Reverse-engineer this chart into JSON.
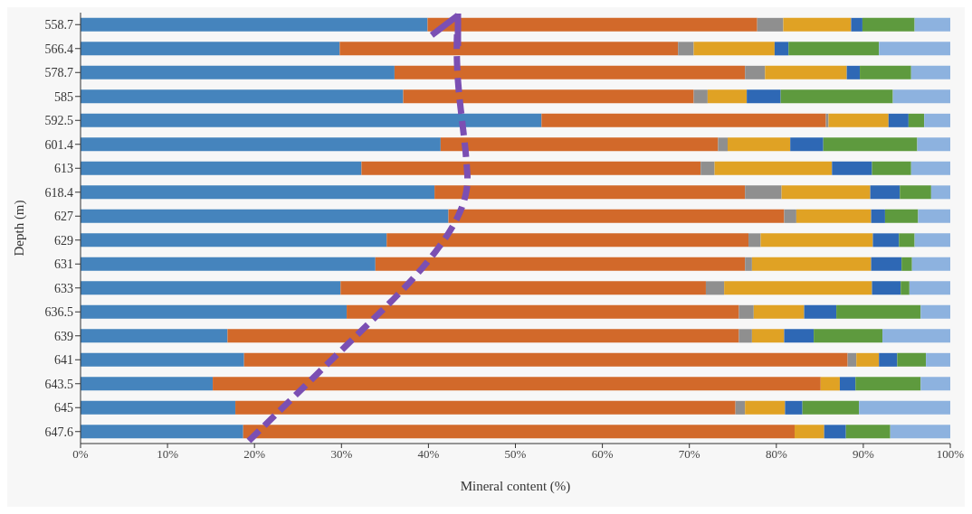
{
  "chart_data": {
    "type": "bar",
    "orientation": "horizontal",
    "stacked": true,
    "xlabel": "Mineral content (%)",
    "ylabel": "Depth (m)",
    "categories": [
      "558.7",
      "566.4",
      "578.7",
      "585",
      "592.5",
      "601.4",
      "613",
      "618.4",
      "627",
      "629",
      "631",
      "633",
      "636.5",
      "639",
      "641",
      "643.5",
      "645",
      "647.6"
    ],
    "xlim": [
      0,
      100
    ],
    "xticks": [
      {
        "value": 0,
        "label": "0%"
      },
      {
        "value": 10,
        "label": "10%"
      },
      {
        "value": 20,
        "label": "20%"
      },
      {
        "value": 30,
        "label": "30%"
      },
      {
        "value": 40,
        "label": "40%"
      },
      {
        "value": 50,
        "label": "50%"
      },
      {
        "value": 60,
        "label": "60%"
      },
      {
        "value": 70,
        "label": "70%"
      },
      {
        "value": 80,
        "label": "80%"
      },
      {
        "value": 90,
        "label": "90%"
      },
      {
        "value": 100,
        "label": "100%"
      }
    ],
    "grid": false,
    "legend": false,
    "series": [
      {
        "color": "#4584bd",
        "values": [
          39.9,
          29.8,
          36.1,
          37.1,
          53.0,
          41.4,
          32.3,
          40.7,
          42.3,
          35.2,
          33.9,
          29.9,
          30.6,
          16.9,
          18.8,
          15.2,
          17.8,
          18.7
        ]
      },
      {
        "color": "#d2692a",
        "values": [
          37.9,
          38.9,
          40.3,
          33.4,
          32.7,
          31.9,
          39.0,
          35.7,
          38.6,
          41.6,
          42.5,
          42.0,
          45.1,
          58.8,
          69.4,
          69.9,
          57.5,
          63.4
        ]
      },
      {
        "color": "#8f8f8f",
        "values": [
          3.0,
          1.8,
          2.3,
          1.6,
          0.3,
          1.1,
          1.6,
          4.2,
          1.4,
          1.4,
          0.8,
          2.1,
          1.7,
          1.5,
          1.0,
          0,
          1.1,
          0
        ]
      },
      {
        "color": "#e0a224",
        "values": [
          7.8,
          9.3,
          9.4,
          4.5,
          6.9,
          7.2,
          13.5,
          10.2,
          8.6,
          12.9,
          13.7,
          17.0,
          5.8,
          3.7,
          2.6,
          2.2,
          4.6,
          3.4
        ]
      },
      {
        "color": "#2e68b5",
        "values": [
          1.3,
          1.6,
          1.5,
          3.9,
          2.3,
          3.8,
          4.6,
          3.4,
          1.6,
          3.0,
          3.5,
          3.3,
          3.7,
          3.4,
          2.1,
          1.8,
          2.0,
          2.5
        ]
      },
      {
        "color": "#5e9a3e",
        "values": [
          6.0,
          10.4,
          5.9,
          12.9,
          1.8,
          10.8,
          4.5,
          3.6,
          3.8,
          1.8,
          1.2,
          1.0,
          9.7,
          7.9,
          3.3,
          7.5,
          6.5,
          5.1
        ]
      },
      {
        "color": "#8db2df",
        "values": [
          4.1,
          8.2,
          4.5,
          6.6,
          3.0,
          3.8,
          4.5,
          2.2,
          3.7,
          4.1,
          4.4,
          4.7,
          3.4,
          7.8,
          2.8,
          3.4,
          10.5,
          6.9
        ]
      }
    ]
  }
}
